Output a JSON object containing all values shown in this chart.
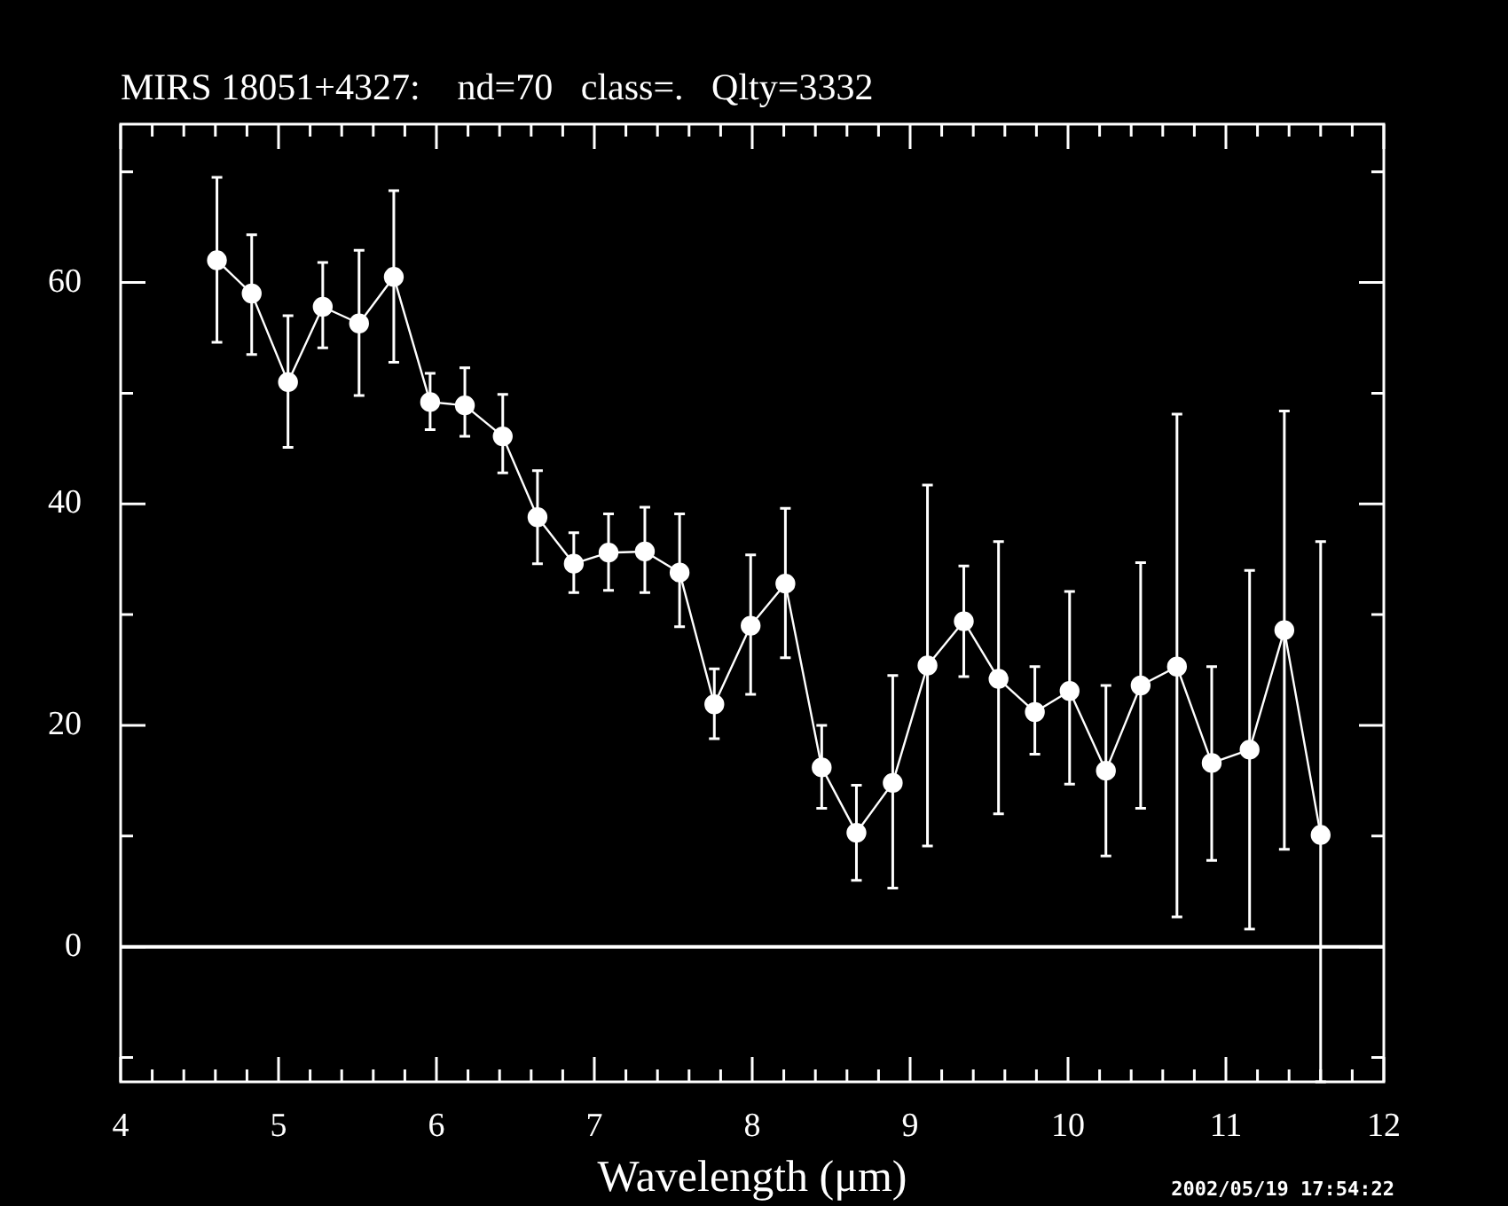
{
  "chart_data": {
    "type": "line",
    "title": "MIRS 18051+4327:    nd=70   class=.   Qlty=3332",
    "xlabel": "Wavelength (μm)",
    "x": [
      4.61,
      4.83,
      5.06,
      5.28,
      5.51,
      5.73,
      5.96,
      6.18,
      6.42,
      6.64,
      6.87,
      7.09,
      7.32,
      7.54,
      7.76,
      7.99,
      8.21,
      8.44,
      8.66,
      8.89,
      9.11,
      9.34,
      9.56,
      9.79,
      10.01,
      10.24,
      10.46,
      10.69,
      10.91,
      11.15,
      11.37,
      11.6
    ],
    "series": [
      {
        "color": "#ffffff",
        "values": [
          62.0,
          59.0,
          51.0,
          57.8,
          56.3,
          60.5,
          49.2,
          48.9,
          46.1,
          38.8,
          34.6,
          35.6,
          35.7,
          33.8,
          21.9,
          29.0,
          32.8,
          16.2,
          10.3,
          14.8,
          25.4,
          29.4,
          24.2,
          21.2,
          23.1,
          15.9,
          23.6,
          25.3,
          16.6,
          17.8,
          28.6,
          10.1
        ],
        "errors": [
          [
            54.6,
            69.5
          ],
          [
            53.5,
            64.3
          ],
          [
            45.1,
            57.0
          ],
          [
            54.1,
            61.8
          ],
          [
            49.8,
            62.9
          ],
          [
            52.8,
            68.3
          ],
          [
            46.7,
            51.8
          ],
          [
            46.1,
            52.3
          ],
          [
            42.8,
            49.9
          ],
          [
            34.6,
            43.0
          ],
          [
            32.0,
            37.4
          ],
          [
            32.2,
            39.1
          ],
          [
            32.0,
            39.7
          ],
          [
            28.9,
            39.1
          ],
          [
            18.8,
            25.1
          ],
          [
            22.8,
            35.4
          ],
          [
            26.1,
            39.6
          ],
          [
            12.5,
            20.0
          ],
          [
            6.0,
            14.6
          ],
          [
            5.3,
            24.5
          ],
          [
            9.1,
            41.7
          ],
          [
            24.4,
            34.4
          ],
          [
            12.0,
            36.6
          ],
          [
            17.4,
            25.3
          ],
          [
            14.7,
            32.1
          ],
          [
            8.2,
            23.6
          ],
          [
            12.5,
            34.7
          ],
          [
            2.7,
            48.1
          ],
          [
            7.8,
            25.3
          ],
          [
            1.6,
            34.0
          ],
          [
            8.8,
            48.4
          ],
          [
            -12.2,
            36.6
          ]
        ]
      }
    ],
    "xlim": [
      4,
      12
    ],
    "ylim": [
      -12.2,
      74.3
    ],
    "xticks": [
      4,
      {
        "value": 4.2,
        "label": null
      },
      {
        "value": 4.4,
        "label": null
      },
      {
        "value": 4.6,
        "label": null
      },
      {
        "value": 4.8,
        "label": null
      },
      5,
      {
        "value": 5.2,
        "label": null
      },
      {
        "value": 5.4,
        "label": null
      },
      {
        "value": 5.6,
        "label": null
      },
      {
        "value": 5.8,
        "label": null
      },
      6,
      {
        "value": 6.2,
        "label": null
      },
      {
        "value": 6.4,
        "label": null
      },
      {
        "value": 6.6,
        "label": null
      },
      {
        "value": 6.8,
        "label": null
      },
      7,
      {
        "value": 7.2,
        "label": null
      },
      {
        "value": 7.4,
        "label": null
      },
      {
        "value": 7.6,
        "label": null
      },
      {
        "value": 7.8,
        "label": null
      },
      8,
      {
        "value": 8.2,
        "label": null
      },
      {
        "value": 8.4,
        "label": null
      },
      {
        "value": 8.6,
        "label": null
      },
      {
        "value": 8.8,
        "label": null
      },
      9,
      {
        "value": 9.2,
        "label": null
      },
      {
        "value": 9.4,
        "label": null
      },
      {
        "value": 9.6,
        "label": null
      },
      {
        "value": 9.8,
        "label": null
      },
      10,
      {
        "value": 10.2,
        "label": null
      },
      {
        "value": 10.4,
        "label": null
      },
      {
        "value": 10.6,
        "label": null
      },
      {
        "value": 10.8,
        "label": null
      },
      11,
      {
        "value": 11.2,
        "label": null
      },
      {
        "value": 11.4,
        "label": null
      },
      {
        "value": 11.6,
        "label": null
      },
      {
        "value": 11.8,
        "label": null
      },
      12
    ],
    "yticks": [
      {
        "value": -10,
        "label": null
      },
      0,
      {
        "value": 10,
        "label": null
      },
      20,
      {
        "value": 30,
        "label": null
      },
      40,
      {
        "value": 50,
        "label": null
      },
      60,
      {
        "value": 70,
        "label": null
      }
    ],
    "ref_lines": [
      {
        "axis": "y",
        "value": 0,
        "color": "#ffffff"
      }
    ],
    "marker": "circle",
    "line_style": "solid",
    "legend": false,
    "annotations": [
      "2002/05/19 17:54:22"
    ]
  }
}
